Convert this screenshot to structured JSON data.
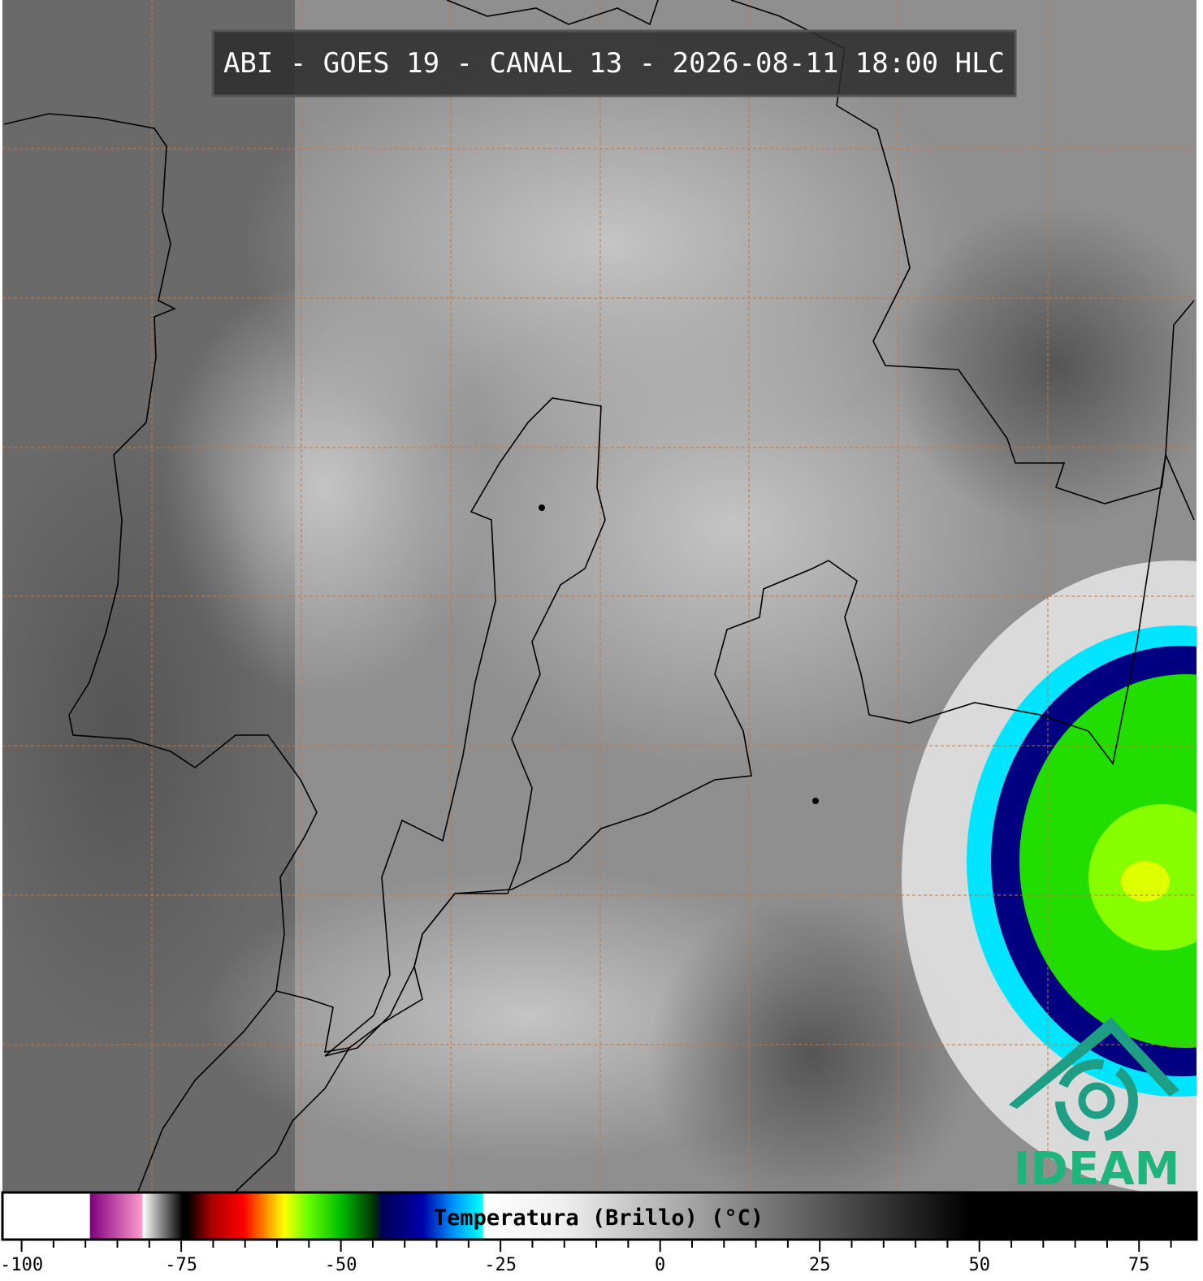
{
  "header": {
    "title": "ABI - GOES 19 - CANAL 13 - 2026-08-11 18:00 HLC"
  },
  "logo": {
    "text": "IDEAM"
  },
  "colorbar": {
    "label": "Temperatura (Brillo) (°C)",
    "lim": [
      -103,
      84
    ],
    "ticks": [
      -100,
      -75,
      -50,
      -25,
      0,
      25,
      50,
      75
    ],
    "minor_ticks": [
      -95,
      -90,
      -85,
      -80,
      -70,
      -65,
      -60,
      -55,
      -45,
      -40,
      -35,
      -30,
      -20,
      -15,
      -10,
      -5,
      5,
      10,
      15,
      20,
      30,
      35,
      40,
      45,
      55,
      60,
      65,
      70,
      80
    ]
  }
}
